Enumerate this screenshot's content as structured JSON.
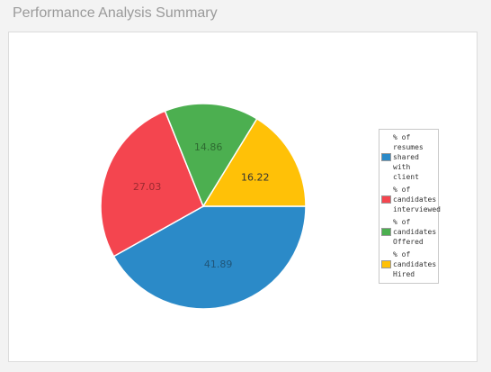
{
  "page": {
    "title": "Performance Analysis Summary"
  },
  "chart_data": {
    "type": "pie",
    "title": "",
    "legend_position": "right",
    "slices": [
      {
        "label": "% of resumes shared with client",
        "value": 41.89,
        "color": "#2b8ac8",
        "label_color": "#20567a"
      },
      {
        "label": "% of candidates interviewed",
        "value": 27.03,
        "color": "#f4454f",
        "label_color": "#9b2a31"
      },
      {
        "label": "% of candidates Offered",
        "value": 14.86,
        "color": "#4caf50",
        "label_color": "#2e6b31"
      },
      {
        "label": "% of candidates Hired",
        "value": 16.22,
        "color": "#ffc107",
        "label_color": "#333333"
      }
    ],
    "legend_order": [
      0,
      1,
      2,
      3
    ],
    "draw_order": [
      0,
      1,
      2,
      3
    ]
  }
}
